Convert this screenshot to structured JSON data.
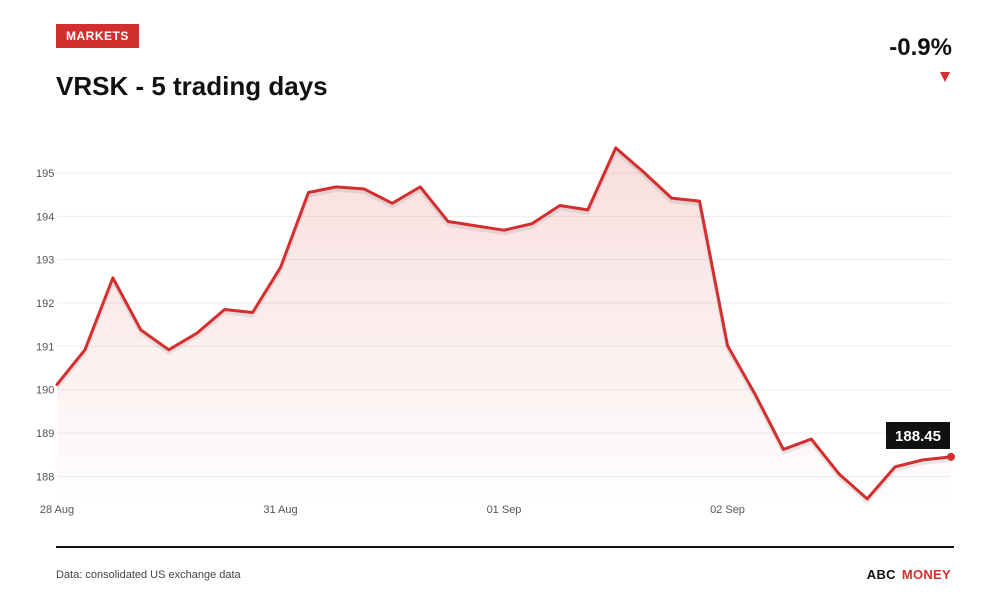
{
  "header": {
    "badge": "MARKETS",
    "title": "VRSK - 5 trading days",
    "change": "-0.9%",
    "change_direction_icon": "down-triangle-icon",
    "accent_color": "#d32f2f"
  },
  "footer": {
    "source": "Data: consolidated US exchange data",
    "brand_part1": "ABC",
    "brand_part2": "MONEY"
  },
  "chart_data": {
    "type": "area",
    "title": "VRSK - 5 trading days",
    "xlabel": "",
    "ylabel": "",
    "x_tick_labels": [
      "28 Aug",
      "31 Aug",
      "01 Sep",
      "02 Sep"
    ],
    "y_ticks": [
      188,
      189,
      190,
      191,
      192,
      193,
      194,
      195
    ],
    "ylim": [
      187.5,
      195.6
    ],
    "grid": true,
    "last_value_label": "188.45",
    "series": [
      {
        "color": "#d32f2f",
        "values": [
          190.12,
          190.92,
          192.58,
          191.38,
          190.92,
          191.3,
          191.85,
          191.78,
          192.82,
          194.55,
          194.68,
          194.63,
          194.3,
          194.68,
          193.88,
          193.78,
          193.68,
          193.83,
          194.25,
          194.15,
          195.58,
          195.02,
          194.42,
          194.35,
          191.02,
          189.88,
          188.62,
          188.86,
          188.05,
          187.48,
          188.22,
          188.38,
          188.45
        ]
      }
    ]
  }
}
